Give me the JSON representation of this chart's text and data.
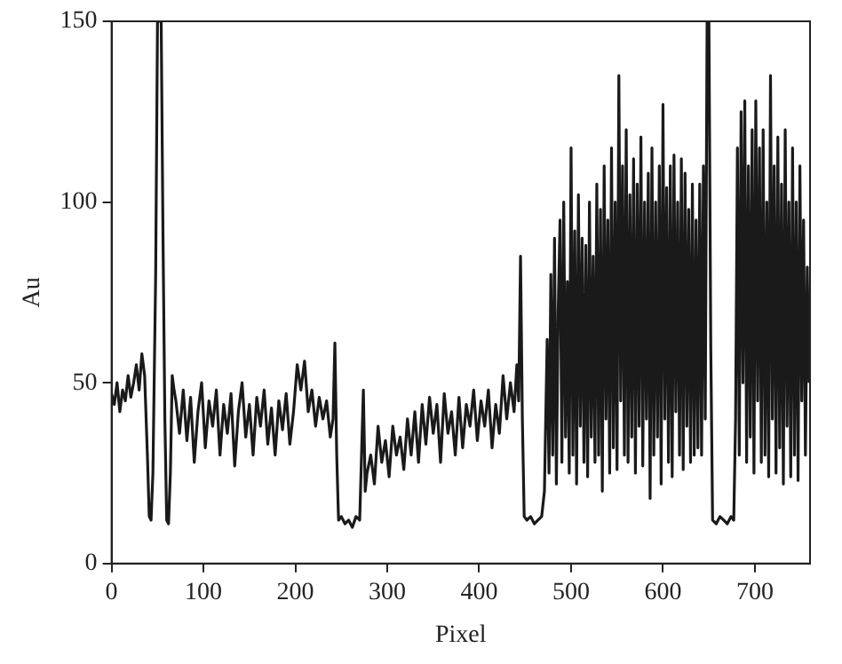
{
  "chart_data": {
    "type": "line",
    "xlabel": "Pixel",
    "ylabel": "Au",
    "xlim": [
      0,
      760
    ],
    "xticks": [
      0,
      100,
      200,
      300,
      400,
      500,
      600,
      700
    ],
    "ylim": [
      0,
      150
    ],
    "yticks": [
      0,
      50,
      100,
      150
    ],
    "grid": false,
    "legend": false,
    "marker": "none",
    "line_style": "solid",
    "series": [
      {
        "color": "#1a1a1a",
        "x": [
          0,
          3,
          6,
          9,
          12,
          15,
          18,
          21,
          24,
          27,
          30,
          33,
          36,
          39,
          41,
          43,
          45,
          48,
          50,
          52,
          54,
          56,
          58,
          60,
          62,
          64,
          66,
          68,
          70,
          74,
          78,
          82,
          86,
          90,
          94,
          98,
          102,
          106,
          110,
          114,
          118,
          122,
          126,
          130,
          134,
          138,
          142,
          146,
          150,
          154,
          158,
          162,
          166,
          170,
          174,
          178,
          182,
          186,
          190,
          194,
          198,
          202,
          206,
          210,
          214,
          218,
          222,
          226,
          230,
          234,
          238,
          241,
          243,
          245,
          247,
          250,
          254,
          258,
          262,
          266,
          270,
          272,
          274,
          276,
          278,
          282,
          286,
          290,
          294,
          298,
          302,
          306,
          310,
          314,
          318,
          322,
          326,
          330,
          334,
          338,
          342,
          346,
          350,
          354,
          358,
          362,
          366,
          370,
          374,
          378,
          382,
          386,
          390,
          394,
          398,
          402,
          406,
          410,
          414,
          418,
          422,
          426,
          430,
          434,
          438,
          441,
          443,
          445,
          447,
          449,
          452,
          456,
          460,
          464,
          468,
          471,
          474,
          476,
          478,
          480,
          482,
          484,
          486,
          488,
          490,
          492,
          494,
          496,
          498,
          500,
          502,
          504,
          506,
          508,
          510,
          512,
          514,
          516,
          518,
          520,
          522,
          524,
          526,
          528,
          530,
          532,
          534,
          536,
          538,
          540,
          542,
          544,
          546,
          548,
          550,
          552,
          554,
          556,
          558,
          560,
          562,
          564,
          566,
          568,
          570,
          572,
          574,
          576,
          578,
          580,
          582,
          584,
          586,
          588,
          590,
          592,
          594,
          596,
          598,
          600,
          602,
          604,
          606,
          608,
          610,
          612,
          614,
          616,
          618,
          620,
          622,
          624,
          626,
          628,
          630,
          632,
          634,
          636,
          638,
          640,
          642,
          644,
          646,
          648,
          650,
          652,
          654,
          658,
          662,
          666,
          670,
          674,
          677,
          679,
          681,
          683,
          685,
          687,
          689,
          691,
          693,
          695,
          697,
          699,
          701,
          703,
          705,
          707,
          709,
          711,
          713,
          715,
          717,
          719,
          721,
          723,
          725,
          727,
          729,
          731,
          733,
          735,
          737,
          739,
          741,
          743,
          745,
          747,
          749,
          751,
          753,
          755,
          757,
          759
        ],
        "values": [
          47,
          44,
          50,
          42,
          48,
          45,
          52,
          46,
          50,
          55,
          48,
          58,
          52,
          30,
          13,
          12,
          25,
          80,
          150,
          150,
          150,
          90,
          40,
          12,
          11,
          25,
          52,
          48,
          45,
          36,
          48,
          34,
          46,
          28,
          42,
          50,
          32,
          45,
          38,
          48,
          30,
          44,
          36,
          47,
          27,
          42,
          50,
          35,
          44,
          30,
          46,
          38,
          48,
          33,
          43,
          30,
          45,
          37,
          47,
          33,
          42,
          55,
          48,
          56,
          42,
          48,
          38,
          46,
          40,
          45,
          35,
          40,
          61,
          30,
          12,
          13,
          11,
          12,
          10,
          13,
          12,
          30,
          48,
          20,
          25,
          30,
          22,
          38,
          28,
          34,
          24,
          38,
          30,
          35,
          26,
          40,
          30,
          42,
          28,
          44,
          33,
          46,
          36,
          44,
          28,
          47,
          36,
          42,
          30,
          46,
          32,
          44,
          38,
          48,
          34,
          45,
          38,
          48,
          32,
          44,
          36,
          52,
          40,
          50,
          42,
          55,
          45,
          85,
          40,
          13,
          12,
          13,
          11,
          12,
          13,
          20,
          62,
          25,
          80,
          30,
          90,
          22,
          70,
          95,
          28,
          100,
          35,
          78,
          25,
          115,
          30,
          92,
          22,
          102,
          38,
          90,
          28,
          88,
          24,
          100,
          35,
          85,
          28,
          105,
          30,
          98,
          20,
          110,
          40,
          95,
          25,
          115,
          32,
          100,
          26,
          135,
          45,
          110,
          30,
          120,
          28,
          102,
          35,
          112,
          25,
          105,
          38,
          118,
          27,
          100,
          40,
          108,
          18,
          115,
          30,
          100,
          35,
          110,
          22,
          127,
          40,
          104,
          28,
          110,
          24,
          113,
          42,
          100,
          30,
          112,
          26,
          108,
          38,
          98,
          28,
          105,
          30,
          95,
          32,
          105,
          30,
          110,
          40,
          150,
          150,
          60,
          12,
          11,
          13,
          12,
          11,
          13,
          12,
          40,
          115,
          30,
          125,
          50,
          128,
          28,
          110,
          35,
          120,
          25,
          128,
          45,
          115,
          28,
          120,
          30,
          100,
          24,
          135,
          40,
          110,
          25,
          118,
          32,
          105,
          22,
          120,
          38,
          100,
          24,
          115,
          30,
          100,
          23,
          110,
          45,
          95,
          30,
          82,
          50
        ]
      }
    ]
  }
}
